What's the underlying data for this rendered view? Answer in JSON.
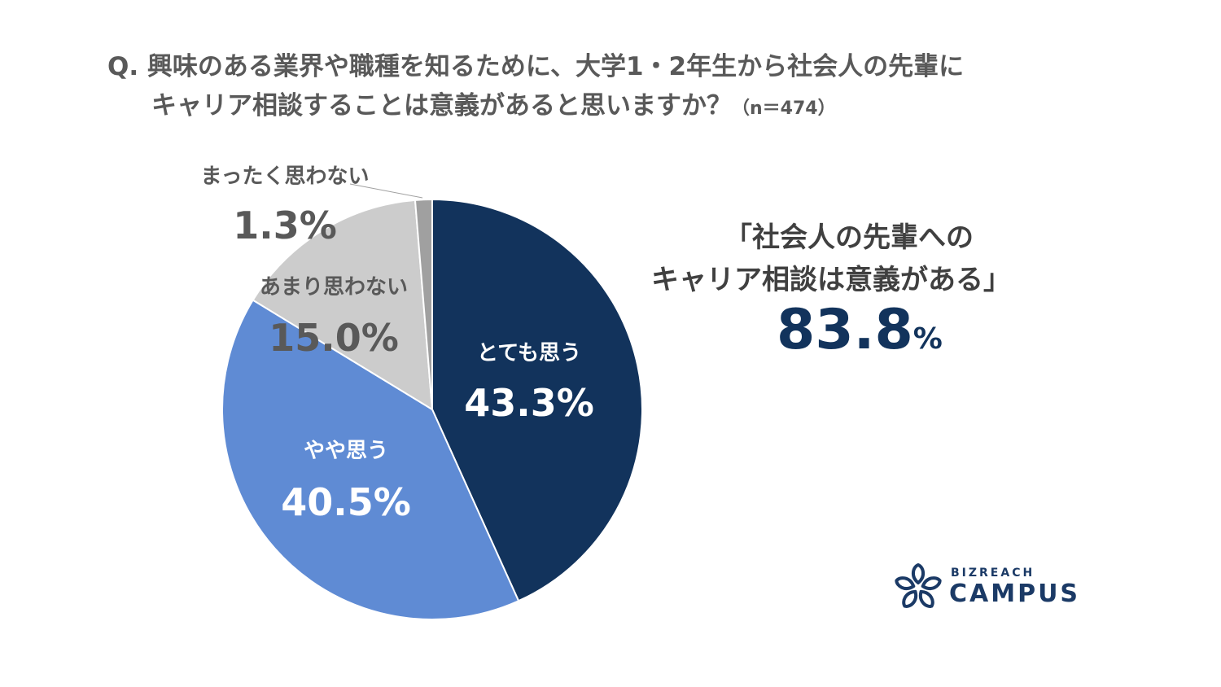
{
  "chart_data": {
    "type": "pie",
    "title_line1": "Q. 興味のある業界や職種を知るために、大学1・2年生から社会人の先輩に",
    "title_line2": "キャリア相談することは意義があると思いますか？",
    "sample_size": "（n＝474）",
    "start_angle": "top",
    "direction": "clockwise",
    "slices": [
      {
        "label": "とても思う",
        "value": 43.3,
        "value_label": "43.3%",
        "color": "#12335c"
      },
      {
        "label": "やや思う",
        "value": 40.5,
        "value_label": "40.5%",
        "color": "#5f8bd4"
      },
      {
        "label": "あまり思わない",
        "value": 15.0,
        "value_label": "15.0%",
        "color": "#cccccc"
      },
      {
        "label": "まったく思わない",
        "value": 1.3,
        "value_label": "1.3%",
        "color": "#a0a0a0"
      }
    ]
  },
  "callout": {
    "line1": "「社会人の先輩への",
    "line2": "キャリア相談は意義がある」",
    "value": "83.8",
    "unit": "%"
  },
  "logo": {
    "top": "BIZREACH",
    "bottom": "CAMPUS",
    "color": "#1b3a66"
  }
}
